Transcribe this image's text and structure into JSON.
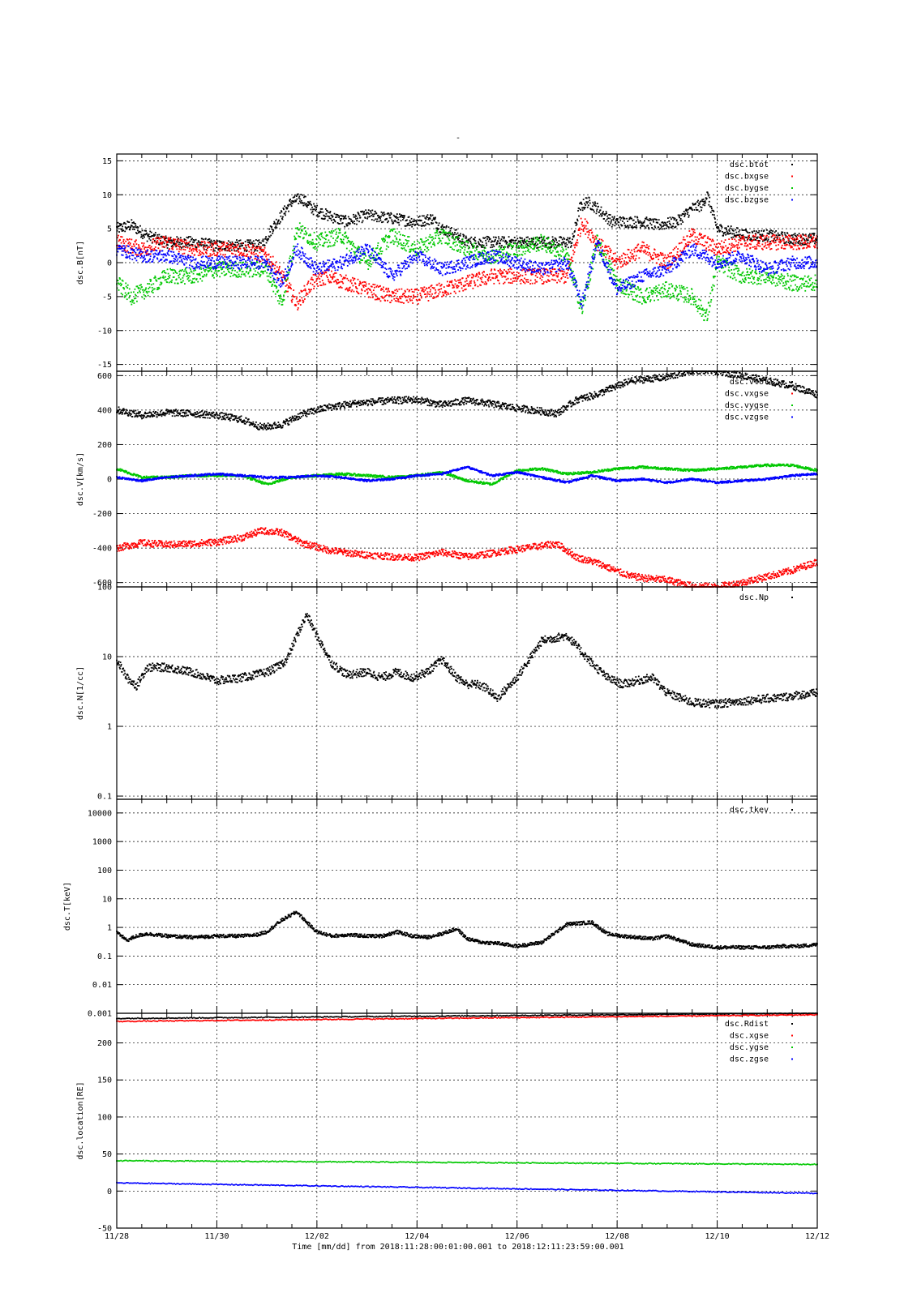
{
  "figure": {
    "title": "-",
    "footer": "Time [mm/dd]  from 2018:11:28:00:01:00.001  to  2018:12:11:23:59:00.001"
  },
  "chart_data": [
    {
      "type": "scatter",
      "ylabel": "dsc.B[nT]",
      "xlim": [
        "2018-11-28",
        "2018-12-12"
      ],
      "ylim": [
        -16,
        16
      ],
      "yscale": "linear",
      "yticks": [
        -15,
        -10,
        -5,
        0,
        5,
        10,
        15
      ],
      "ytick_labels": [
        "-15",
        "-10",
        "-5",
        "0",
        "5",
        "10",
        "15"
      ],
      "grid": true,
      "legend": "top-right",
      "series": [
        {
          "name": "dsc.btot",
          "color": "#000000",
          "x_days": [
            0,
            0.3,
            0.6,
            1,
            1.5,
            2,
            2.5,
            2.9,
            3.1,
            3.3,
            3.5,
            3.7,
            3.9,
            4.2,
            4.6,
            5,
            5.5,
            6,
            6.3,
            6.5,
            6.8,
            7,
            7.4,
            7.8,
            8.2,
            8.6,
            9.1,
            9.25,
            9.4,
            9.6,
            9.9,
            10.2,
            10.5,
            10.8,
            11.2,
            11.5,
            11.7,
            11.8,
            12,
            12.3,
            12.6,
            13,
            13.5,
            14
          ],
          "values": [
            5,
            5.5,
            4,
            3,
            3,
            2.5,
            2.5,
            2.5,
            5,
            7,
            9,
            9.5,
            8,
            7,
            6,
            7,
            6.5,
            6,
            6.5,
            5,
            4,
            3,
            3,
            3,
            3,
            3,
            3,
            8,
            9,
            8,
            6,
            6,
            6,
            5.5,
            6,
            8,
            8.5,
            10,
            5,
            4.5,
            4,
            4,
            3.5,
            3.5
          ]
        },
        {
          "name": "dsc.bxgse",
          "color": "#ff0000",
          "x_days": [
            0,
            0.5,
            1,
            1.5,
            2,
            2.5,
            3,
            3.3,
            3.6,
            3.9,
            4.2,
            4.6,
            5,
            5.5,
            6,
            6.5,
            7,
            7.5,
            8,
            8.5,
            9,
            9.3,
            9.6,
            10,
            10.5,
            11,
            11.5,
            12,
            12.5,
            13,
            13.5,
            14
          ],
          "values": [
            3,
            2,
            3,
            2,
            2,
            2,
            1,
            -2,
            -6,
            -3,
            -2,
            -3,
            -4,
            -5,
            -5,
            -4,
            -3,
            -2,
            -2,
            -2,
            -2,
            6,
            3,
            0,
            2,
            0,
            4,
            2,
            3,
            3,
            3,
            3
          ]
        },
        {
          "name": "dsc.bygse",
          "color": "#00c800",
          "x_days": [
            0,
            0.3,
            0.6,
            1,
            1.5,
            2,
            2.5,
            3,
            3.3,
            3.6,
            4,
            4.5,
            5,
            5.5,
            6,
            6.5,
            7,
            7.5,
            8,
            8.5,
            9,
            9.3,
            9.6,
            10,
            10.5,
            11,
            11.5,
            11.8,
            12,
            12.5,
            13,
            13.5,
            14
          ],
          "values": [
            -3,
            -5,
            -4,
            -2,
            -2,
            -1,
            -1,
            -1,
            -6,
            5,
            3,
            4,
            0,
            4,
            2,
            4,
            2,
            1,
            2,
            3,
            1,
            -7,
            3,
            -3,
            -5,
            -4,
            -5,
            -8,
            0,
            -2,
            -2,
            -3,
            -3
          ]
        },
        {
          "name": "dsc.bzgse",
          "color": "#0000ff",
          "x_days": [
            0,
            0.5,
            1,
            1.5,
            2,
            2.5,
            3,
            3.3,
            3.6,
            4,
            4.5,
            5,
            5.5,
            6,
            6.5,
            7,
            7.5,
            8,
            8.5,
            9,
            9.3,
            9.6,
            10,
            10.5,
            11,
            11.5,
            12,
            12.5,
            13,
            13.5,
            14
          ],
          "values": [
            2,
            1,
            1,
            0,
            0,
            0,
            0,
            -3,
            2,
            -1,
            0,
            2,
            -2,
            1,
            -1,
            0,
            1,
            0,
            -1,
            0,
            -6,
            3,
            -4,
            -2,
            -1,
            2,
            0,
            1,
            -1,
            0,
            0
          ]
        }
      ]
    },
    {
      "type": "scatter",
      "ylabel": "dsc.V[km/s]",
      "xlim": [
        "2018-11-28",
        "2018-12-12"
      ],
      "ylim": [
        -625,
        625
      ],
      "yscale": "linear",
      "yticks": [
        -600,
        -400,
        -200,
        0,
        200,
        400,
        600
      ],
      "ytick_labels": [
        "-600",
        "-400",
        "-200",
        "0",
        "200",
        "400",
        "600"
      ],
      "grid": true,
      "legend": "top-right",
      "series": [
        {
          "name": "dsc.vtot",
          "color": "#000000",
          "x_days": [
            0,
            0.5,
            1,
            1.5,
            2,
            2.5,
            2.9,
            3.3,
            3.7,
            4.2,
            4.8,
            5.5,
            6,
            6.5,
            7,
            7.4,
            7.8,
            8.3,
            8.8,
            9.2,
            9.6,
            10,
            10.3,
            10.6,
            11,
            11.5,
            12,
            12.5,
            13,
            13.5,
            14
          ],
          "values": [
            400,
            370,
            385,
            380,
            370,
            345,
            300,
            315,
            375,
            415,
            440,
            455,
            460,
            430,
            455,
            440,
            420,
            400,
            380,
            460,
            490,
            540,
            570,
            580,
            590,
            630,
            625,
            600,
            570,
            540,
            490
          ]
        },
        {
          "name": "dsc.vxgse",
          "color": "#ff0000",
          "x_days": [
            0,
            0.5,
            1,
            1.5,
            2,
            2.5,
            2.9,
            3.3,
            3.7,
            4.2,
            4.8,
            5.5,
            6,
            6.5,
            7,
            7.4,
            7.8,
            8.3,
            8.8,
            9.2,
            9.6,
            10,
            10.3,
            10.6,
            11,
            11.5,
            12,
            12.5,
            13,
            13.5,
            14
          ],
          "values": [
            -400,
            -370,
            -380,
            -375,
            -365,
            -340,
            -300,
            -310,
            -370,
            -410,
            -435,
            -450,
            -455,
            -425,
            -450,
            -435,
            -415,
            -395,
            -375,
            -455,
            -485,
            -535,
            -565,
            -575,
            -585,
            -620,
            -625,
            -600,
            -565,
            -530,
            -480
          ]
        },
        {
          "name": "dsc.vygse",
          "color": "#00c800",
          "x_days": [
            0,
            0.2,
            0.5,
            1,
            1.5,
            2,
            2.5,
            3,
            3.5,
            4,
            4.5,
            5,
            5.5,
            6,
            6.5,
            7,
            7.5,
            8,
            8.5,
            9,
            9.5,
            10,
            10.5,
            11,
            11.5,
            12,
            12.5,
            13,
            13.5,
            14
          ],
          "values": [
            60,
            40,
            10,
            10,
            20,
            20,
            20,
            -30,
            10,
            20,
            30,
            20,
            10,
            20,
            40,
            -10,
            -30,
            50,
            60,
            30,
            40,
            60,
            70,
            60,
            50,
            60,
            70,
            80,
            80,
            50
          ]
        },
        {
          "name": "dsc.vzgse",
          "color": "#0000ff",
          "x_days": [
            0,
            0.5,
            1,
            1.5,
            2,
            2.5,
            3,
            3.5,
            4,
            4.5,
            5,
            5.5,
            6,
            6.5,
            7,
            7.5,
            8,
            8.5,
            9,
            9.5,
            10,
            10.5,
            11,
            11.5,
            12,
            12.5,
            13,
            13.5,
            14
          ],
          "values": [
            10,
            -10,
            10,
            20,
            30,
            20,
            10,
            10,
            20,
            10,
            -10,
            0,
            20,
            30,
            70,
            20,
            40,
            10,
            -20,
            20,
            -10,
            0,
            -20,
            0,
            -20,
            -10,
            0,
            20,
            30
          ]
        }
      ]
    },
    {
      "type": "scatter",
      "ylabel": "dsc.N[1/cc]",
      "xlim": [
        "2018-11-28",
        "2018-12-12"
      ],
      "ylim": [
        0.09,
        100
      ],
      "yscale": "log",
      "yticks": [
        0.1,
        1,
        10,
        100
      ],
      "ytick_labels": [
        "0.1",
        "1",
        "10",
        "100"
      ],
      "grid": true,
      "legend": "top-right",
      "series": [
        {
          "name": "dsc.Np",
          "color": "#000000",
          "x_days": [
            0,
            0.2,
            0.4,
            0.6,
            1,
            1.5,
            2,
            2.5,
            2.8,
            3,
            3.2,
            3.4,
            3.6,
            3.8,
            4,
            4.3,
            4.6,
            5,
            5.3,
            5.6,
            5.9,
            6.2,
            6.5,
            6.8,
            7,
            7.2,
            7.4,
            7.6,
            8,
            8.5,
            9,
            9.5,
            9.8,
            10.1,
            10.4,
            10.7,
            11,
            11.5,
            12,
            12.5,
            13,
            13.3,
            13.6,
            14
          ],
          "values": [
            9,
            5,
            3.8,
            7,
            7,
            6,
            4.5,
            5,
            5.5,
            6,
            7,
            9,
            20,
            40,
            20,
            8,
            5.5,
            6,
            5,
            6,
            5,
            6,
            9,
            5,
            4,
            4,
            3.5,
            2.5,
            5,
            17,
            20,
            8,
            5,
            4,
            4.5,
            5,
            3,
            2.2,
            2.1,
            2.3,
            2.5,
            2.6,
            2.8,
            3
          ]
        }
      ]
    },
    {
      "type": "scatter",
      "ylabel": "dsc.T[keV]",
      "xlim": [
        "2018-11-28",
        "2018-12-12"
      ],
      "ylim": [
        0.001,
        30000
      ],
      "yscale": "log",
      "yticks": [
        0.001,
        0.01,
        0.1,
        1,
        10,
        100,
        1000,
        10000
      ],
      "ytick_labels": [
        "0.001",
        "0.01",
        "0.1",
        "1",
        "10",
        "100",
        "1000",
        "10000"
      ],
      "grid": true,
      "legend": "top-right",
      "series": [
        {
          "name": "dsc.tkev",
          "color": "#000000",
          "x_days": [
            0,
            0.2,
            0.4,
            0.6,
            1,
            1.5,
            2,
            2.5,
            2.8,
            3,
            3.3,
            3.6,
            3.8,
            4,
            4.3,
            4.6,
            5,
            5.3,
            5.6,
            5.9,
            6.2,
            6.5,
            6.8,
            7,
            7.3,
            7.6,
            8,
            8.5,
            9,
            9.5,
            9.8,
            10.1,
            10.4,
            10.7,
            11,
            11.5,
            12,
            12.5,
            13,
            13.3,
            13.6,
            14
          ],
          "values": [
            0.7,
            0.35,
            0.5,
            0.6,
            0.5,
            0.45,
            0.5,
            0.5,
            0.55,
            0.7,
            1.8,
            3.5,
            1.5,
            0.7,
            0.5,
            0.55,
            0.5,
            0.5,
            0.7,
            0.5,
            0.45,
            0.6,
            0.9,
            0.4,
            0.3,
            0.28,
            0.22,
            0.3,
            1.3,
            1.5,
            0.6,
            0.5,
            0.45,
            0.4,
            0.5,
            0.25,
            0.2,
            0.2,
            0.2,
            0.22,
            0.22,
            0.25
          ]
        }
      ]
    },
    {
      "type": "scatter",
      "ylabel": "dsc.location[RE]",
      "xlim": [
        "2018-11-28",
        "2018-12-12"
      ],
      "ylim": [
        -50,
        240
      ],
      "yscale": "linear",
      "yticks": [
        -50,
        0,
        50,
        100,
        150,
        200
      ],
      "ytick_labels": [
        "-50",
        "0",
        "50",
        "100",
        "150",
        "200"
      ],
      "grid": true,
      "legend": "top-right",
      "series": [
        {
          "name": "dsc.Rdist",
          "color": "#000000",
          "x_days": [
            0,
            14
          ],
          "values": [
            233,
            240
          ]
        },
        {
          "name": "dsc.xgse",
          "color": "#ff0000",
          "x_days": [
            0,
            14
          ],
          "values": [
            229,
            238
          ]
        },
        {
          "name": "dsc.ygse",
          "color": "#00c800",
          "x_days": [
            0,
            14
          ],
          "values": [
            41,
            36
          ]
        },
        {
          "name": "dsc.zgse",
          "color": "#0000ff",
          "x_days": [
            0,
            14
          ],
          "values": [
            11,
            -3
          ]
        }
      ]
    }
  ],
  "xaxis": {
    "ticks_days": [
      0,
      2,
      4,
      6,
      8,
      10,
      12,
      14
    ],
    "tick_labels": [
      "11/28",
      "11/30",
      "12/02",
      "12/04",
      "12/06",
      "12/08",
      "12/10",
      "12/12"
    ]
  }
}
